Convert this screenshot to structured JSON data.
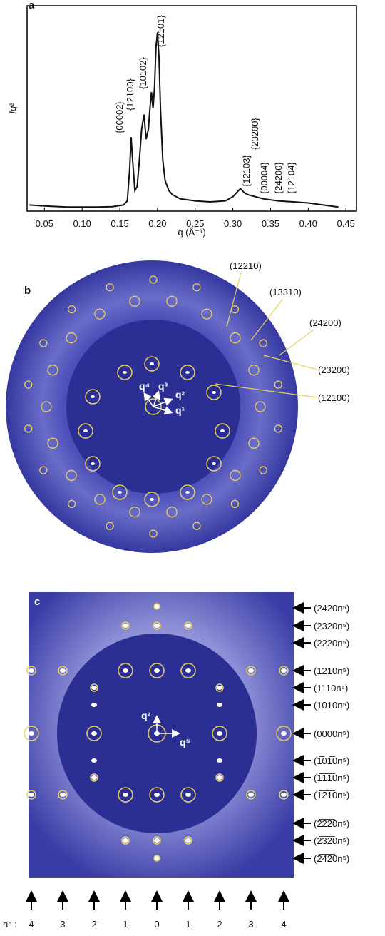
{
  "chart_data": {
    "type": "line",
    "panel_label": "a",
    "x_label": "q (Å⁻¹)",
    "y_label": "Iq²",
    "color": "#111111",
    "x": [
      0.03,
      0.05,
      0.08,
      0.1,
      0.12,
      0.14,
      0.155,
      0.16,
      0.163,
      0.165,
      0.167,
      0.17,
      0.173,
      0.176,
      0.179,
      0.182,
      0.185,
      0.188,
      0.19,
      0.192,
      0.194,
      0.196,
      0.198,
      0.2,
      0.202,
      0.204,
      0.207,
      0.21,
      0.215,
      0.22,
      0.23,
      0.25,
      0.27,
      0.29,
      0.3,
      0.305,
      0.31,
      0.315,
      0.32,
      0.34,
      0.36,
      0.38,
      0.4,
      0.42,
      0.44
    ],
    "values": [
      0.03,
      0.025,
      0.02,
      0.02,
      0.02,
      0.022,
      0.03,
      0.05,
      0.2,
      0.36,
      0.25,
      0.1,
      0.12,
      0.25,
      0.4,
      0.47,
      0.35,
      0.4,
      0.5,
      0.58,
      0.5,
      0.6,
      0.8,
      0.87,
      0.75,
      0.5,
      0.25,
      0.15,
      0.1,
      0.08,
      0.06,
      0.05,
      0.045,
      0.05,
      0.07,
      0.09,
      0.11,
      0.09,
      0.08,
      0.06,
      0.05,
      0.045,
      0.04,
      0.03,
      0.02
    ],
    "xlim": [
      0.027,
      0.464
    ],
    "ylim": [
      0,
      1
    ],
    "xticks": [
      0.05,
      {
        "value": 0.1,
        "label": "0.10"
      },
      0.15,
      {
        "value": 0.2,
        "label": "0.20"
      },
      0.25,
      {
        "value": 0.3,
        "label": "0.30"
      },
      0.35,
      {
        "value": 0.4,
        "label": "0.40"
      },
      0.45
    ],
    "annotations": [
      "{00002}",
      "{12100}",
      "{10102}",
      "{12101}",
      "{12103}",
      "{23200}",
      "{00004}",
      "{24200}",
      "{12104}"
    ]
  },
  "panel_b": {
    "label": "b",
    "vector_labels": [
      "q⁴",
      "q³",
      "q²",
      "q¹"
    ],
    "reflections": [
      "(12210)",
      "(13310)",
      "(24200)",
      "(23200)",
      "(12100)"
    ]
  },
  "panel_c": {
    "label": "c",
    "vector_labels": [
      "q²",
      "q⁵"
    ],
    "row_labels": [
      "(2420n⁵)",
      "(2320n⁵)",
      "(2220n⁵)",
      "(1210n⁵)",
      "(1110n⁵)",
      "(1010n⁵)",
      "(0000n⁵)",
      "(1̅01̅0n⁵)",
      "(1̅1̅1̅0n⁵)",
      "(1̅2̅1̅0n⁵)",
      "(2̅2̅2̅0n⁵)",
      "(2̅3̅2̅0n⁵)",
      "(2̅4̅2̅0n⁵)"
    ],
    "n5_label": "n⁵ :",
    "n5_values": [
      "4̅",
      "3̅",
      "2̅",
      "1̅",
      "0",
      "1",
      "2",
      "3",
      "4"
    ]
  }
}
